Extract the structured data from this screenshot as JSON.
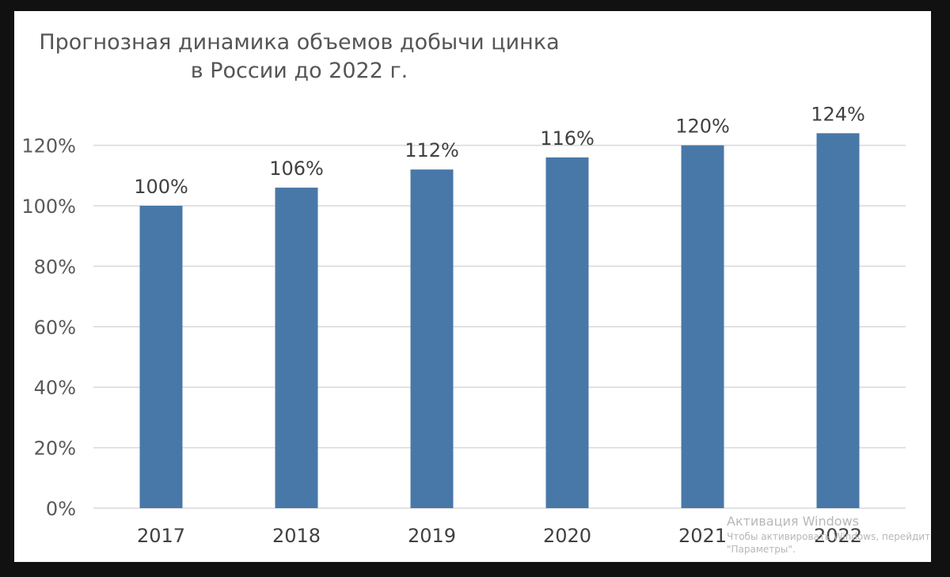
{
  "chart_data": {
    "type": "bar",
    "title_line1": "Прогнозная динамика объемов добычи цинка",
    "title_line2": "в России до 2022 г.",
    "xlabel": "",
    "ylabel": "",
    "categories": [
      "2017",
      "2018",
      "2019",
      "2020",
      "2021",
      "2022"
    ],
    "values": [
      100,
      106,
      112,
      116,
      120,
      124
    ],
    "data_labels": [
      "100%",
      "106%",
      "112%",
      "116%",
      "120%",
      "124%"
    ],
    "ylim": [
      0,
      120
    ],
    "yticks": [
      0,
      20,
      40,
      60,
      80,
      100,
      120
    ],
    "ytick_labels": [
      "0%",
      "20%",
      "40%",
      "60%",
      "80%",
      "100%",
      "120%"
    ],
    "grid": true,
    "legend": "none",
    "bar_color": "#4878a8"
  },
  "watermark": {
    "title": "Активация Windows",
    "line1": "Чтобы активировать Windows, перейдите",
    "line2": "\"Параметры\"."
  }
}
